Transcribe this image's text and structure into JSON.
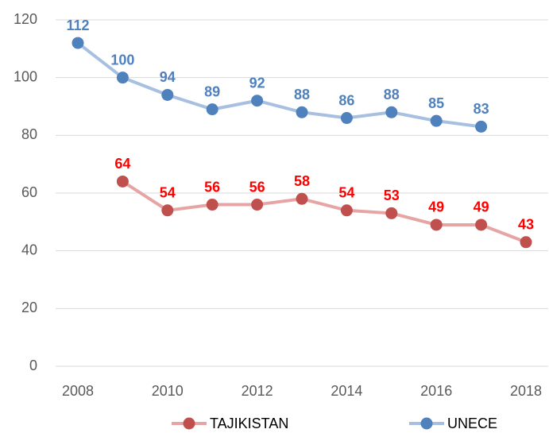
{
  "chart_data": {
    "type": "line",
    "x": [
      2008,
      2009,
      2010,
      2011,
      2012,
      2013,
      2014,
      2015,
      2016,
      2017,
      2018
    ],
    "xlim": [
      2008,
      2018
    ],
    "xticks": [
      2008,
      2010,
      2012,
      2014,
      2016,
      2018
    ],
    "ylim": [
      0,
      120
    ],
    "yticks": [
      0,
      20,
      40,
      60,
      80,
      100,
      120
    ],
    "grid": true,
    "legend": "bottom",
    "series": [
      {
        "name": "TAJIKISTAN",
        "color": "#c0504d",
        "line_color": "#e6a5a4",
        "label_color": "#ff0000",
        "values": [
          null,
          64,
          54,
          56,
          56,
          58,
          54,
          53,
          49,
          49,
          43
        ]
      },
      {
        "name": "UNECE",
        "color": "#4f81bd",
        "line_color": "#a7bfe0",
        "label_color": "#4f81bd",
        "values": [
          112,
          100,
          94,
          89,
          92,
          88,
          86,
          88,
          85,
          83,
          null
        ]
      }
    ]
  }
}
